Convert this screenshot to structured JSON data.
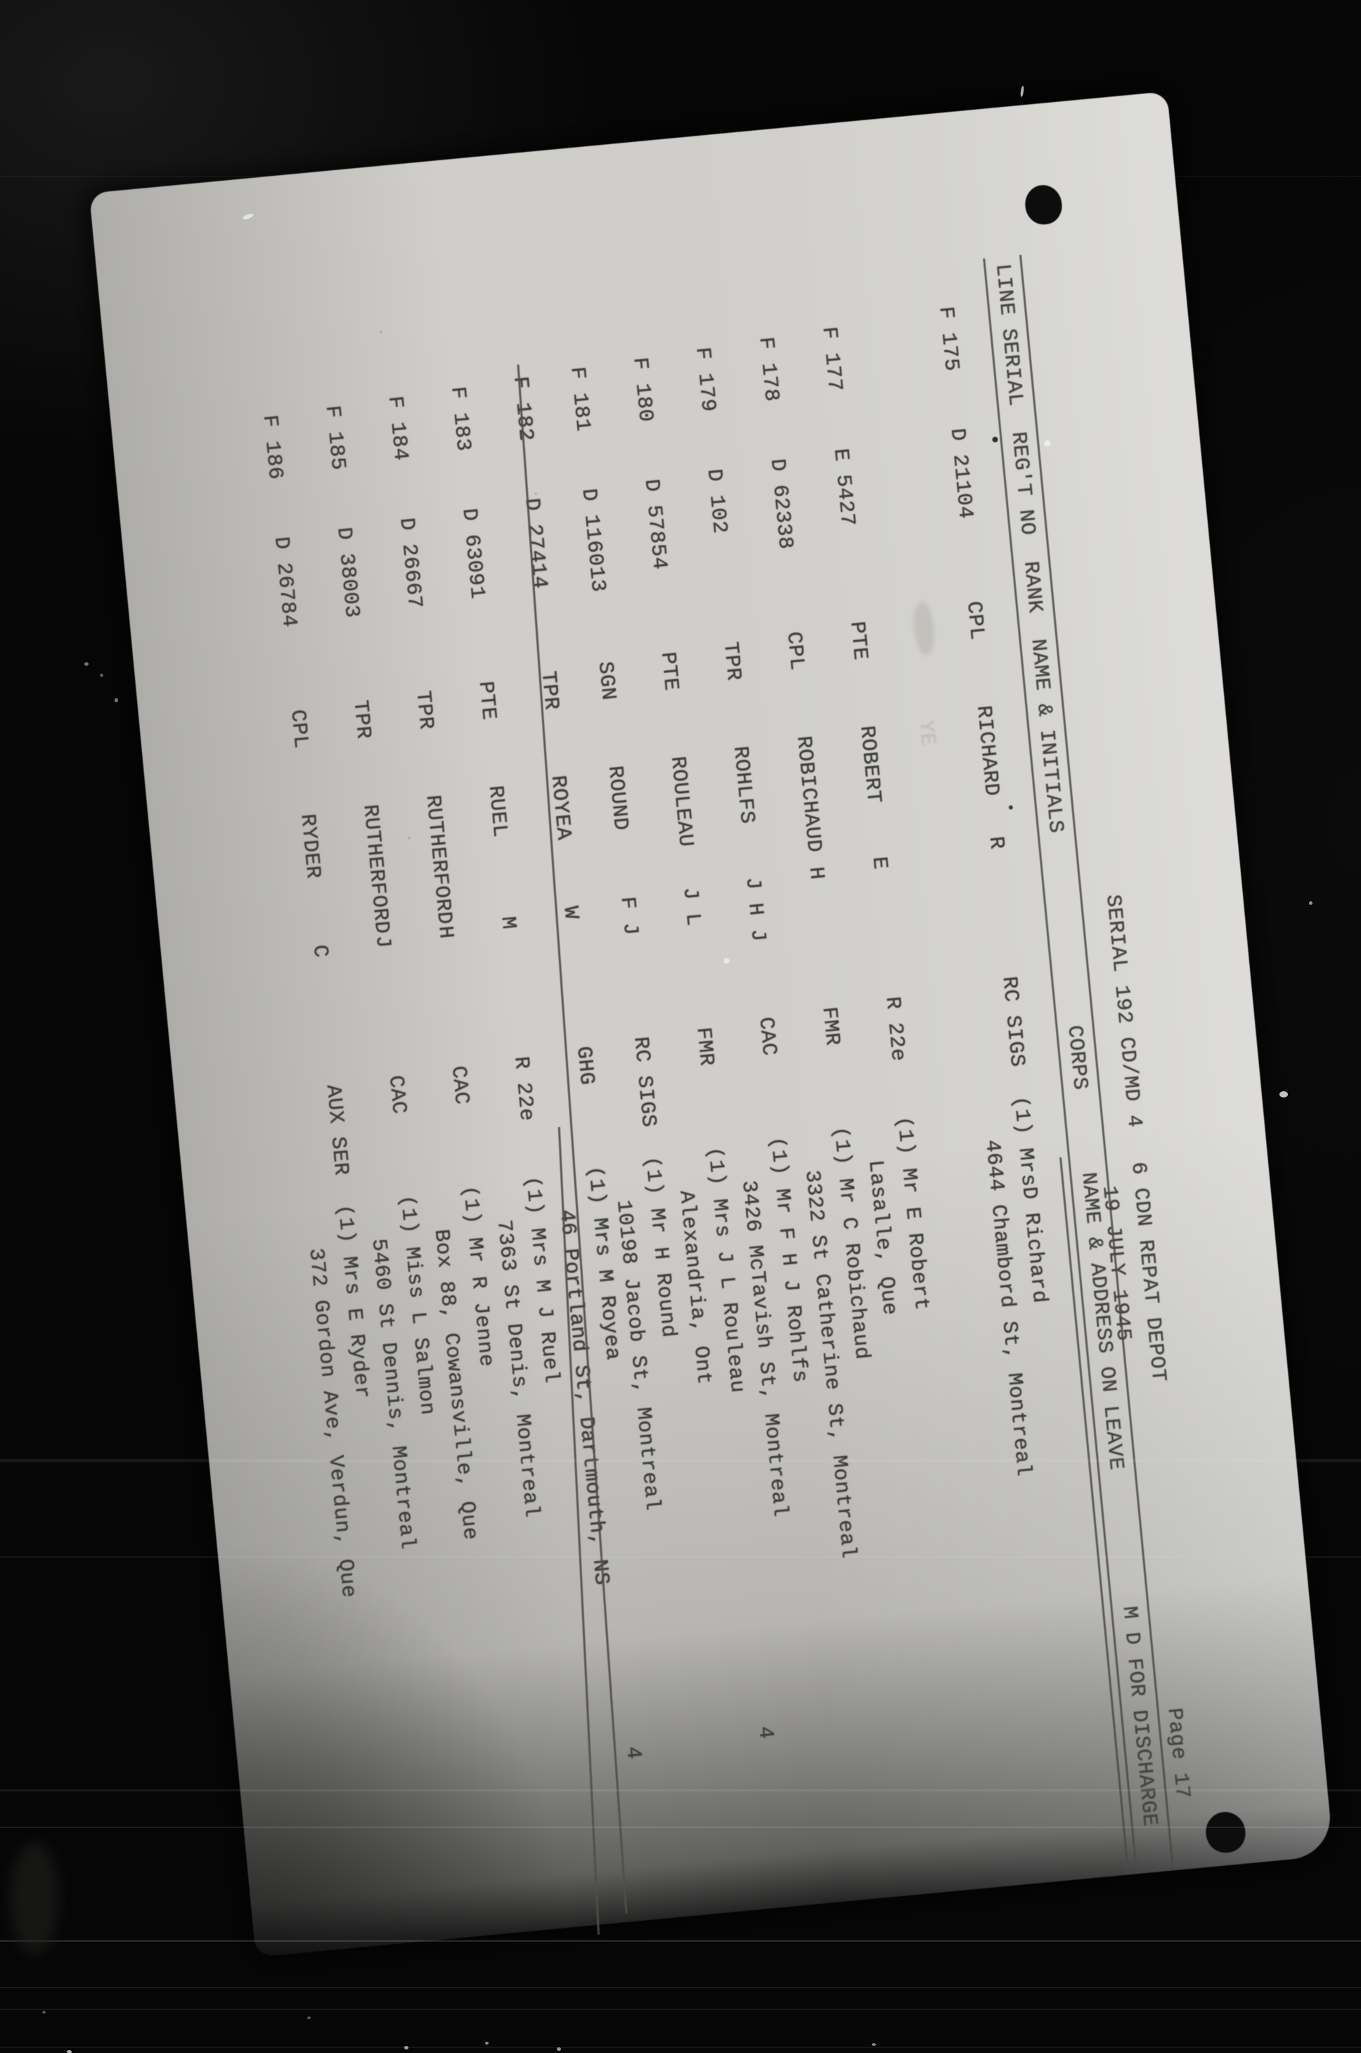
{
  "document": {
    "serial_title": "SERIAL 192 CD/MD 4",
    "depot": "6 CDN REPAT DEPOT",
    "date": "19 JULY 1945",
    "md_for_discharge": "M D FOR DISCHARGE",
    "page_label": "Page 17"
  },
  "table": {
    "headers": {
      "line_serial": "LINE SERIAL",
      "regt_no": "REG'T NO",
      "rank": "RANK",
      "name_initials": "NAME & INITIALS",
      "corps": "CORPS",
      "name_address": "NAME & ADDRESS ON LEAVE"
    },
    "rows": [
      {
        "serial": "F 175",
        "regt_no": "D 21104",
        "rank": "CPL",
        "surname": "RICHARD",
        "initials": "R",
        "corps": "RC SIGS",
        "address_line1": "(1) MrsD Richard",
        "address_line2": "4644 Chambord St, Montreal",
        "md": "",
        "struck": false
      },
      {
        "serial": "F 177",
        "regt_no": "E 5427",
        "rank": "PTE",
        "surname": "ROBERT",
        "initials": "E",
        "corps": "R 22e",
        "address_line1": "(1) Mr E Robert",
        "address_line2": "Lasalle, Que",
        "md": "",
        "struck": false
      },
      {
        "serial": "F 178",
        "regt_no": "D 62338",
        "rank": "CPL",
        "surname": "ROBICHAUD",
        "initials": "H",
        "corps": "FMR",
        "address_line1": "(1) Mr C Robichaud",
        "address_line2": "3322 St Catherine St, Montreal",
        "md": "",
        "struck": false
      },
      {
        "serial": "F 179",
        "regt_no": "D 102",
        "rank": "TPR",
        "surname": "ROHLFS",
        "initials": "J H J",
        "corps": "CAC",
        "address_line1": "(1) Mr F H J Rohlfs",
        "address_line2": "3426 McTavish St, Montreal",
        "md": "",
        "struck": false
      },
      {
        "serial": "F 180",
        "regt_no": "D 57854",
        "rank": "PTE",
        "surname": "ROULEAU",
        "initials": "J L",
        "corps": "FMR",
        "address_line1": "(1) Mrs J L Rouleau",
        "address_line2": "Alexandria, Ont",
        "md": "4",
        "struck": false
      },
      {
        "serial": "F 181",
        "regt_no": "D 116013",
        "rank": "SGN",
        "surname": "ROUND",
        "initials": "F J",
        "corps": "RC SIGS",
        "address_line1": "(1) Mr H Round",
        "address_line2": "10198 Jacob St, Montreal",
        "md": "",
        "struck": false
      },
      {
        "serial": "F 182",
        "regt_no": "D 27414",
        "rank": "TPR",
        "surname": "ROYEA",
        "initials": "W",
        "corps": "GHG",
        "address_line1": "(1) Mrs M Royea",
        "address_line2": "46 Portland St, Dartmouth, NS",
        "md": "4",
        "struck": true
      },
      {
        "serial": "F 183",
        "regt_no": "D 63091",
        "rank": "PTE",
        "surname": "RUEL",
        "initials": "M",
        "corps": "R 22e",
        "address_line1": "(1) Mrs M J Ruel",
        "address_line2": "7363 St Denis, Montreal",
        "md": "",
        "struck": false
      },
      {
        "serial": "F 184",
        "regt_no": "D 26667",
        "rank": "TPR",
        "surname": "RUTHERFORD",
        "initials": "H",
        "corps": "CAC",
        "address_line1": "(1) Mr R Jenne",
        "address_line2": "Box 88, Cowansville, Que",
        "md": "",
        "struck": false
      },
      {
        "serial": "F 185",
        "regt_no": "D 38003",
        "rank": "TPR",
        "surname": "RUTHERFORD",
        "initials": "J",
        "corps": "CAC",
        "address_line1": "(1) Miss L Salmon",
        "address_line2": "5460 St Dennis, Montreal",
        "md": "",
        "struck": false
      },
      {
        "serial": "F 186",
        "regt_no": "D 26784",
        "rank": "CPL",
        "surname": "RYDER",
        "initials": "C",
        "corps": "AUX SER",
        "address_line1": "(1) Mrs E Ryder",
        "address_line2": "372 Gordon Ave, Verdun, Que",
        "md": "",
        "struck": false
      }
    ]
  },
  "ghost_row": {
    "text": "YE"
  },
  "colors": {
    "paper": "#cfceca",
    "ink": "#3e3d3a",
    "rule": "#4a4946",
    "background": "#060606"
  }
}
